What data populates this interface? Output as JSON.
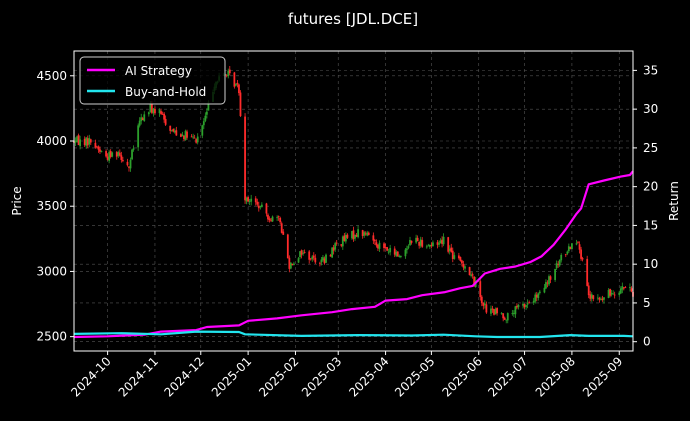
{
  "chart_data": {
    "type": "line",
    "title": "futures [JDL.DCE]",
    "ylabel_left": "Price",
    "ylabel_right": "Return",
    "x_tick_labels": [
      "2024-10",
      "2024-11",
      "2024-12",
      "2025-01",
      "2025-02",
      "2025-03",
      "2025-04",
      "2025-05",
      "2025-06",
      "2025-07",
      "2025-08",
      "2025-09"
    ],
    "x_range": [
      "2024-09-09",
      "2025-09-10"
    ],
    "price_ylim": [
      2390,
      4690
    ],
    "price_ticks": [
      2500,
      3000,
      3500,
      4000,
      4500
    ],
    "return_ylim": [
      -1.2,
      37.5
    ],
    "return_ticks": [
      0,
      5,
      10,
      15,
      20,
      25,
      30,
      35
    ],
    "grid": true,
    "legend_position": "top-left",
    "candle_colors": {
      "up": "#2ca02c",
      "down": "#ff2b2b"
    },
    "price_path": [
      [
        "2024-09-09",
        4000
      ],
      [
        "2024-09-20",
        4000
      ],
      [
        "2024-09-30",
        3880
      ],
      [
        "2024-10-08",
        3920
      ],
      [
        "2024-10-15",
        3800
      ],
      [
        "2024-10-22",
        4150
      ],
      [
        "2024-10-29",
        4250
      ],
      [
        "2024-11-05",
        4200
      ],
      [
        "2024-11-12",
        4080
      ],
      [
        "2024-11-20",
        4050
      ],
      [
        "2024-11-28",
        4000
      ],
      [
        "2024-12-04",
        4180
      ],
      [
        "2024-12-10",
        4450
      ],
      [
        "2024-12-18",
        4520
      ],
      [
        "2024-12-26",
        4400
      ],
      [
        "2024-12-30",
        3580
      ],
      [
        "2025-01-08",
        3500
      ],
      [
        "2025-01-15",
        3420
      ],
      [
        "2025-01-22",
        3380
      ],
      [
        "2025-01-28",
        3050
      ],
      [
        "2025-02-05",
        3150
      ],
      [
        "2025-02-12",
        3100
      ],
      [
        "2025-02-20",
        3080
      ],
      [
        "2025-02-27",
        3200
      ],
      [
        "2025-03-06",
        3250
      ],
      [
        "2025-03-14",
        3300
      ],
      [
        "2025-03-21",
        3280
      ],
      [
        "2025-03-28",
        3200
      ],
      [
        "2025-04-04",
        3150
      ],
      [
        "2025-04-11",
        3120
      ],
      [
        "2025-04-18",
        3250
      ],
      [
        "2025-04-25",
        3220
      ],
      [
        "2025-05-02",
        3200
      ],
      [
        "2025-05-09",
        3250
      ],
      [
        "2025-05-16",
        3100
      ],
      [
        "2025-05-23",
        3050
      ],
      [
        "2025-05-30",
        2900
      ],
      [
        "2025-06-06",
        2700
      ],
      [
        "2025-06-13",
        2680
      ],
      [
        "2025-06-20",
        2650
      ],
      [
        "2025-06-27",
        2720
      ],
      [
        "2025-07-04",
        2760
      ],
      [
        "2025-07-11",
        2820
      ],
      [
        "2025-07-18",
        2950
      ],
      [
        "2025-07-25",
        3100
      ],
      [
        "2025-07-31",
        3200
      ],
      [
        "2025-08-05",
        3250
      ],
      [
        "2025-08-12",
        2800
      ],
      [
        "2025-08-20",
        2780
      ],
      [
        "2025-08-28",
        2850
      ],
      [
        "2025-09-04",
        2880
      ],
      [
        "2025-09-10",
        2830
      ]
    ],
    "series": [
      {
        "name": "AI Strategy",
        "color": "#ff00ff",
        "points": [
          [
            "2024-09-09",
            0.6
          ],
          [
            "2024-10-01",
            0.7
          ],
          [
            "2024-10-25",
            0.9
          ],
          [
            "2024-11-05",
            1.3
          ],
          [
            "2024-11-28",
            1.5
          ],
          [
            "2024-12-05",
            1.9
          ],
          [
            "2024-12-26",
            2.1
          ],
          [
            "2025-01-01",
            2.7
          ],
          [
            "2025-01-20",
            3.0
          ],
          [
            "2025-02-05",
            3.4
          ],
          [
            "2025-02-25",
            3.8
          ],
          [
            "2025-03-10",
            4.2
          ],
          [
            "2025-03-25",
            4.5
          ],
          [
            "2025-04-01",
            5.3
          ],
          [
            "2025-04-15",
            5.5
          ],
          [
            "2025-04-25",
            6.0
          ],
          [
            "2025-05-10",
            6.4
          ],
          [
            "2025-05-20",
            6.9
          ],
          [
            "2025-05-28",
            7.2
          ],
          [
            "2025-06-05",
            8.8
          ],
          [
            "2025-06-15",
            9.4
          ],
          [
            "2025-06-25",
            9.7
          ],
          [
            "2025-07-05",
            10.3
          ],
          [
            "2025-07-12",
            11.0
          ],
          [
            "2025-07-20",
            12.5
          ],
          [
            "2025-07-28",
            14.5
          ],
          [
            "2025-08-04",
            16.5
          ],
          [
            "2025-08-07",
            17.2
          ],
          [
            "2025-08-12",
            20.3
          ],
          [
            "2025-08-22",
            20.8
          ],
          [
            "2025-09-02",
            21.3
          ],
          [
            "2025-09-08",
            21.5
          ],
          [
            "2025-09-10",
            22.0
          ]
        ]
      },
      {
        "name": "Buy-and-Hold",
        "color": "#22e5ee",
        "points": [
          [
            "2024-09-09",
            1.0
          ],
          [
            "2024-10-10",
            1.1
          ],
          [
            "2024-11-05",
            0.95
          ],
          [
            "2024-11-28",
            1.3
          ],
          [
            "2024-12-26",
            1.25
          ],
          [
            "2024-12-30",
            0.95
          ],
          [
            "2025-02-05",
            0.75
          ],
          [
            "2025-03-14",
            0.85
          ],
          [
            "2025-04-18",
            0.8
          ],
          [
            "2025-05-09",
            0.9
          ],
          [
            "2025-05-30",
            0.7
          ],
          [
            "2025-06-13",
            0.6
          ],
          [
            "2025-07-11",
            0.6
          ],
          [
            "2025-07-31",
            0.85
          ],
          [
            "2025-08-12",
            0.75
          ],
          [
            "2025-09-04",
            0.75
          ],
          [
            "2025-09-10",
            0.7
          ]
        ]
      }
    ]
  }
}
